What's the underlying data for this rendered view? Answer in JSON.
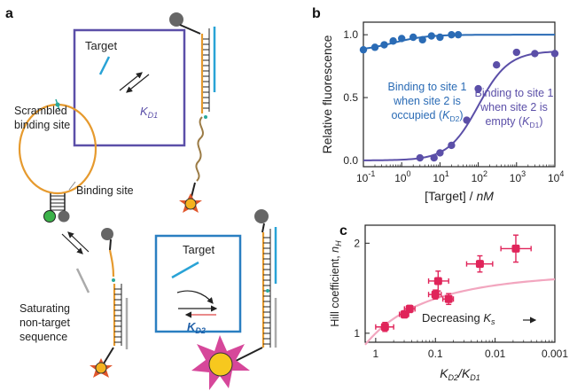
{
  "panels": {
    "a": "a",
    "b": "b",
    "c": "c"
  },
  "panel_a": {
    "box1_title": "Target",
    "box1_kd": "K",
    "box1_kd_sub": "D1",
    "scrambled_label_line1": "Scrambled",
    "scrambled_label_line2": "binding site",
    "binding_site_label": "Binding site",
    "saturating_line1": "Saturating",
    "saturating_line2": "non-target",
    "saturating_line3": "sequence",
    "box2_title": "Target",
    "box2_kd": "K",
    "box2_kd_sub": "D2"
  },
  "chart_data": [
    {
      "type": "scatter",
      "panel": "b",
      "ylabel": "Relative fluorescence",
      "xlabel": "[Target] / nM",
      "x_scale": "log",
      "xlim": [
        0.1,
        10000
      ],
      "ylim": [
        -0.05,
        1.1
      ],
      "x_ticks": [
        "10⁻¹",
        "10⁰",
        "10¹",
        "10²",
        "10³",
        "10⁴"
      ],
      "y_ticks": [
        "0.0",
        "0.5",
        "1.0"
      ],
      "series": [
        {
          "name": "Binding to site 1 when site 2 is occupied (KD2)",
          "color": "#2a6bb5",
          "x": [
            0.1,
            0.2,
            0.35,
            0.6,
            1,
            2,
            3.5,
            6,
            10,
            20,
            30
          ],
          "y": [
            0.88,
            0.9,
            0.92,
            0.95,
            0.97,
            0.98,
            0.96,
            0.99,
            0.98,
            1.0,
            1.0
          ],
          "fit": "flat",
          "fit_level": 1.0
        },
        {
          "name": "Binding to site 1 when site 2 is empty (KD1)",
          "color": "#5b4fa8",
          "x": [
            3,
            7,
            10,
            20,
            50,
            100,
            300,
            1000,
            3000,
            10000
          ],
          "y": [
            0.02,
            0.02,
            0.06,
            0.12,
            0.32,
            0.57,
            0.76,
            0.86,
            0.85,
            0.85
          ],
          "fit": "hill",
          "fit_params": {
            "K": 100,
            "n": 1.1,
            "top": 0.87
          }
        }
      ],
      "annotations": [
        {
          "lines": [
            "Binding to site 1",
            "when site 2 is",
            "occupied (",
            "K",
            "D2",
            ")"
          ],
          "color": "#2a6bb5"
        },
        {
          "lines": [
            "Binding to site 1",
            "when site 2 is",
            "empty (",
            "K",
            "D1",
            ")"
          ],
          "color": "#5b4fa8"
        }
      ]
    },
    {
      "type": "scatter",
      "panel": "c",
      "ylabel": "Hill coefficient, nH",
      "xlabel": "KD2/KD1",
      "x_scale": "log-reversed",
      "xlim": [
        1.5,
        0.001
      ],
      "ylim": [
        0.9,
        2.2
      ],
      "x_ticks": [
        "1",
        "0.1",
        "0.01",
        "0.001"
      ],
      "y_ticks": [
        "1",
        "2"
      ],
      "annotation": "Decreasing Ks",
      "series": [
        {
          "name": "",
          "color": "#e0245a",
          "points": [
            {
              "x": 0.7,
              "y": 1.07,
              "xerr": [
                0.5,
                1.0
              ],
              "yerr": 0.05
            },
            {
              "x": 0.33,
              "y": 1.21,
              "xerr": [
                0.28,
                0.4
              ],
              "yerr": 0.04
            },
            {
              "x": 0.27,
              "y": 1.27,
              "xerr": [
                0.22,
                0.33
              ],
              "yerr": 0.04
            },
            {
              "x": 0.1,
              "y": 1.43,
              "xerr": [
                0.08,
                0.13
              ],
              "yerr": 0.05
            },
            {
              "x": 0.09,
              "y": 1.58,
              "xerr": [
                0.06,
                0.13
              ],
              "yerr": 0.11
            },
            {
              "x": 0.06,
              "y": 1.38,
              "xerr": [
                0.05,
                0.075
              ],
              "yerr": 0.06
            },
            {
              "x": 0.018,
              "y": 1.77,
              "xerr": [
                0.011,
                0.03
              ],
              "yerr": 0.09
            },
            {
              "x": 0.0045,
              "y": 1.94,
              "xerr": [
                0.0025,
                0.008
              ],
              "yerr": 0.15
            }
          ],
          "fit_color": "#f2a6bf"
        }
      ]
    }
  ]
}
